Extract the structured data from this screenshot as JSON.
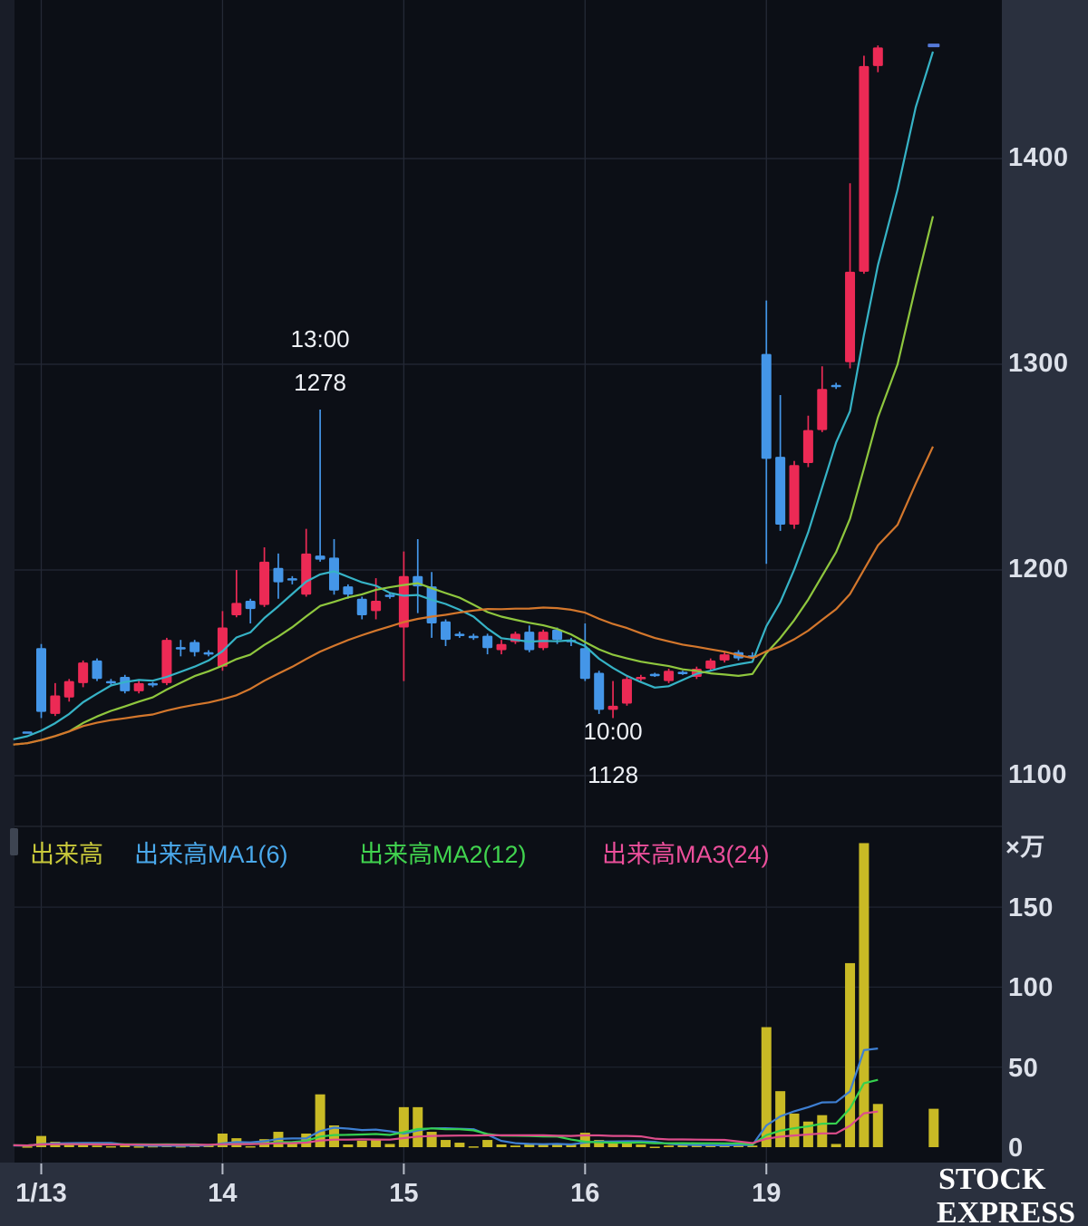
{
  "watermark": {
    "line1": "STOCK",
    "line2": "EXPRESS"
  },
  "legend": {
    "volume_label": "出来高",
    "ma1_label": "出来高MA1(6)",
    "ma2_label": "出来高MA2(12)",
    "ma3_label": "出来高MA3(24)"
  },
  "axes": {
    "volume_unit": "×万",
    "price_ticks": [
      {
        "label": "1400",
        "price": 1400
      },
      {
        "label": "1300",
        "price": 1300
      },
      {
        "label": "1200",
        "price": 1200
      },
      {
        "label": "1100",
        "price": 1100
      }
    ],
    "volume_ticks": [
      {
        "label": "150",
        "value": 150
      },
      {
        "label": "100",
        "value": 100
      },
      {
        "label": "50",
        "value": 50
      },
      {
        "label": "0",
        "value": 0
      }
    ],
    "x_ticks": [
      {
        "label": "1/13"
      },
      {
        "label": "14"
      },
      {
        "label": "15"
      },
      {
        "label": "16"
      },
      {
        "label": "19"
      }
    ]
  },
  "annotations": [
    {
      "time": "13:00",
      "value": "1278",
      "candle_index": 20,
      "placement": "above"
    },
    {
      "time": "10:00",
      "value": "1128",
      "candle_index": 41,
      "placement": "below"
    }
  ],
  "colors": {
    "background": "#0c0f16",
    "left_strip": "#191d28",
    "notch": "#3e4552",
    "panel": "#2a303e",
    "grid": "#242936",
    "grid_soft": "#1f2430",
    "separator": "#20252f",
    "tick_mark": "#b7bdc9",
    "axis_text": "#dde1ea",
    "annotation_text": "#eef1f6",
    "watermark_text": "#ffffff",
    "candle_up": "#ec2a55",
    "candle_down": "#4496e8",
    "price_ma1": "#36b3c6",
    "price_ma2": "#8fc73e",
    "price_ma3": "#d4772c",
    "volume_bar": "#c9ba25",
    "volume_ma1": "#3e7fd2",
    "volume_ma2": "#35d14f",
    "volume_ma3": "#dd4d8b",
    "last_price_marker": "#5579d9",
    "legend_volume": "#c9c93a",
    "legend_ma1": "#4aa9ec",
    "legend_ma2": "#41d44f",
    "legend_ma3": "#ec4f9b"
  },
  "chart_data": {
    "type": "candlestick+volume",
    "interval": "30min",
    "price_unit": "yen",
    "volume_unit_label": "×万",
    "price_axis_range": [
      1080,
      1470
    ],
    "volume_axis_range": [
      0,
      200
    ],
    "ma_periods": {
      "ma1": 6,
      "ma2": 12,
      "ma3": 24
    },
    "pre_candle": [
      1121.5,
      1121.5,
      1121,
      1121,
      0.5
    ],
    "lead_in": {
      "closes": [
        1106,
        1109,
        1112,
        1115,
        1117,
        1119,
        1121,
        1122
      ],
      "volumes": [
        1.5,
        1.2,
        1.0,
        1.4,
        1.1,
        0.9,
        1.2,
        1.0
      ]
    },
    "days": [
      {
        "label": "1/13",
        "candles": [
          [
            1162,
            1164,
            1128,
            1131,
            7
          ],
          [
            1130,
            1145,
            1129,
            1139,
            3.4
          ],
          [
            1138,
            1147,
            1136,
            1146,
            2
          ],
          [
            1145,
            1156,
            1143,
            1155,
            1.7
          ],
          [
            1156,
            1157,
            1146,
            1147,
            1
          ],
          [
            1146,
            1147,
            1144,
            1145,
            0.6
          ],
          [
            1148,
            1149,
            1140,
            1141,
            1
          ],
          [
            1141,
            1146,
            1140,
            1145,
            0.5
          ],
          [
            1145,
            1145.5,
            1143,
            1144,
            0.7
          ],
          [
            1145,
            1167,
            1144,
            1166,
            1.7
          ],
          [
            1162.5,
            1166,
            1158,
            1162,
            0.6
          ],
          [
            1165,
            1166,
            1158,
            1160,
            1
          ],
          [
            1160,
            1161,
            1158,
            1159,
            1.7
          ]
        ]
      },
      {
        "label": "14",
        "candles": [
          [
            1153,
            1180,
            1151,
            1172,
            8.5
          ],
          [
            1178,
            1200,
            1177,
            1184,
            5.6
          ],
          [
            1185,
            1186,
            1174,
            1181,
            0.6
          ],
          [
            1183,
            1211,
            1182,
            1204,
            5
          ],
          [
            1201,
            1208,
            1186,
            1194,
            9.6
          ],
          [
            1196,
            1197,
            1193,
            1195,
            3.4
          ],
          [
            1188,
            1220,
            1187,
            1208,
            8.5
          ],
          [
            1207,
            1278,
            1204,
            1205,
            33
          ],
          [
            1206,
            1215,
            1188,
            1190,
            13.6
          ],
          [
            1192,
            1193,
            1186,
            1188,
            1.7
          ],
          [
            1186,
            1187,
            1176,
            1178,
            4
          ],
          [
            1180,
            1196,
            1176,
            1185,
            5
          ],
          [
            1188,
            1189,
            1186,
            1187,
            2
          ]
        ]
      },
      {
        "label": "15",
        "candles": [
          [
            1172,
            1209,
            1146,
            1197,
            25
          ],
          [
            1197,
            1215,
            1179,
            1192,
            25
          ],
          [
            1192,
            1199,
            1167,
            1174,
            9.6
          ],
          [
            1175,
            1176,
            1163,
            1166,
            4.5
          ],
          [
            1169,
            1170,
            1167,
            1168,
            2.8
          ],
          [
            1168,
            1169,
            1166,
            1167,
            0.5
          ],
          [
            1168,
            1169,
            1159,
            1162,
            4.5
          ],
          [
            1161,
            1166,
            1159,
            1164,
            1.7
          ],
          [
            1165,
            1170,
            1164,
            1169,
            1
          ],
          [
            1170,
            1173,
            1160,
            1161,
            1.7
          ],
          [
            1162,
            1171,
            1161,
            1170,
            1.7
          ],
          [
            1171,
            1172,
            1164,
            1166,
            1.7
          ],
          [
            1166,
            1167,
            1163,
            1165,
            2.3
          ]
        ]
      },
      {
        "label": "16",
        "candles": [
          [
            1162,
            1174,
            1146,
            1147,
            9
          ],
          [
            1150,
            1151,
            1130,
            1132,
            4.5
          ],
          [
            1132,
            1146,
            1128,
            1134,
            2.3
          ],
          [
            1135,
            1148,
            1134,
            1147,
            2.3
          ],
          [
            1147,
            1149,
            1146,
            1148,
            1.7
          ],
          [
            1149.5,
            1150,
            1148,
            1149,
            0.3
          ],
          [
            1146,
            1152,
            1145,
            1151,
            1
          ],
          [
            1150.5,
            1151,
            1149,
            1150,
            1.7
          ],
          [
            1148,
            1153,
            1147,
            1152,
            1
          ],
          [
            1152,
            1157,
            1151,
            1156,
            1.7
          ],
          [
            1156,
            1160,
            1155,
            1159,
            1
          ],
          [
            1160,
            1161,
            1156,
            1157,
            1.7
          ],
          [
            1158.5,
            1160,
            1157,
            1158,
            1
          ]
        ]
      },
      {
        "label": "19",
        "candles": [
          [
            1305,
            1331,
            1203,
            1254,
            75
          ],
          [
            1255,
            1285,
            1219,
            1222,
            35
          ],
          [
            1222,
            1253,
            1220,
            1251,
            21
          ],
          [
            1252,
            1275,
            1250,
            1268,
            16
          ],
          [
            1268,
            1299,
            1267,
            1288,
            20
          ],
          [
            1290,
            1291,
            1288,
            1289,
            2
          ],
          [
            1301,
            1388,
            1298,
            1345,
            115
          ],
          [
            1345,
            1450,
            1344,
            1445,
            190
          ],
          [
            1445,
            1455,
            1442,
            1454,
            27
          ]
        ]
      }
    ],
    "last_price_marker": {
      "price": 1455,
      "index_offset": 64,
      "volume": 24
    },
    "ma_tails": {
      "ma1": [
        [
          990,
          1385
        ],
        [
          1010,
          1425
        ],
        [
          1029,
          1452
        ]
      ],
      "ma2": [
        [
          990,
          1300
        ],
        [
          1010,
          1338
        ],
        [
          1029,
          1372
        ]
      ],
      "ma3": [
        [
          990,
          1222
        ],
        [
          1010,
          1242
        ],
        [
          1029,
          1260
        ]
      ]
    }
  }
}
